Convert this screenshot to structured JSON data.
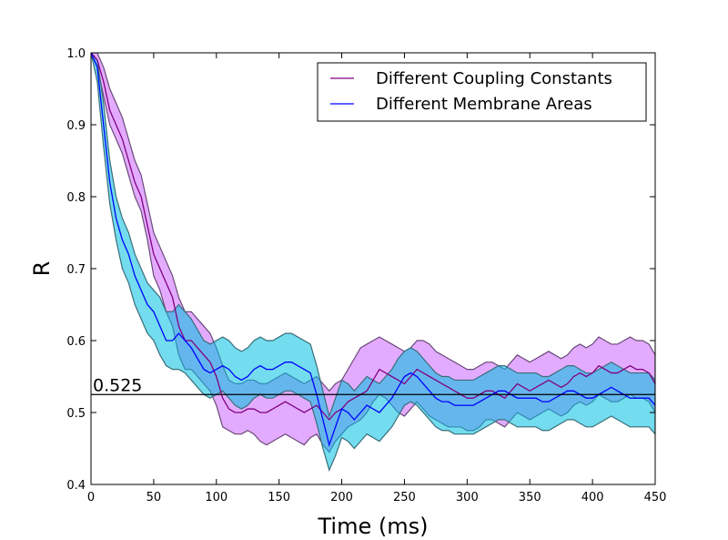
{
  "chart_data": {
    "type": "line",
    "title": "",
    "xlabel": "Time (ms)",
    "ylabel": "R",
    "xlim": [
      0,
      450
    ],
    "ylim": [
      0.4,
      1.0
    ],
    "xticks": [
      0,
      50,
      100,
      150,
      200,
      250,
      300,
      350,
      400,
      450
    ],
    "yticks": [
      0.4,
      0.5,
      0.6,
      0.7,
      0.8,
      0.9,
      1.0
    ],
    "xtick_labels": [
      "0",
      "50",
      "100",
      "150",
      "200",
      "250",
      "300",
      "350",
      "400",
      "450"
    ],
    "ytick_labels": [
      "0.4",
      "0.5",
      "0.6",
      "0.7",
      "0.8",
      "0.9",
      "1.0"
    ],
    "legend_position": "top-right",
    "hline": {
      "y": 0.525,
      "label": "0.525",
      "color": "#000000"
    },
    "series": [
      {
        "name": "Different Coupling Constants",
        "color": "#800080",
        "fill": "#cc66ff",
        "edge": "#6b4a7a",
        "x": [
          0,
          5,
          10,
          15,
          20,
          25,
          30,
          35,
          40,
          45,
          50,
          55,
          60,
          65,
          70,
          75,
          80,
          85,
          90,
          95,
          100,
          105,
          110,
          115,
          120,
          125,
          130,
          135,
          140,
          145,
          150,
          155,
          160,
          165,
          170,
          175,
          180,
          185,
          190,
          195,
          200,
          205,
          210,
          215,
          220,
          225,
          230,
          235,
          240,
          245,
          250,
          255,
          260,
          265,
          270,
          275,
          280,
          285,
          290,
          295,
          300,
          305,
          310,
          315,
          320,
          325,
          330,
          335,
          340,
          345,
          350,
          355,
          360,
          365,
          370,
          375,
          380,
          385,
          390,
          395,
          400,
          405,
          410,
          415,
          420,
          425,
          430,
          435,
          440,
          445,
          450
        ],
        "mean": [
          1.0,
          0.99,
          0.96,
          0.92,
          0.9,
          0.88,
          0.85,
          0.82,
          0.8,
          0.76,
          0.72,
          0.7,
          0.68,
          0.66,
          0.62,
          0.6,
          0.6,
          0.59,
          0.58,
          0.57,
          0.55,
          0.52,
          0.505,
          0.5,
          0.5,
          0.505,
          0.505,
          0.5,
          0.5,
          0.505,
          0.51,
          0.515,
          0.51,
          0.505,
          0.5,
          0.505,
          0.51,
          0.5,
          0.49,
          0.5,
          0.505,
          0.515,
          0.52,
          0.525,
          0.53,
          0.545,
          0.56,
          0.555,
          0.55,
          0.545,
          0.54,
          0.55,
          0.56,
          0.555,
          0.55,
          0.545,
          0.54,
          0.535,
          0.53,
          0.525,
          0.52,
          0.52,
          0.525,
          0.53,
          0.53,
          0.525,
          0.52,
          0.53,
          0.54,
          0.535,
          0.53,
          0.535,
          0.54,
          0.545,
          0.54,
          0.535,
          0.54,
          0.55,
          0.555,
          0.55,
          0.555,
          0.565,
          0.56,
          0.555,
          0.555,
          0.56,
          0.565,
          0.56,
          0.56,
          0.555,
          0.54
        ],
        "lower": [
          1.0,
          0.98,
          0.94,
          0.9,
          0.88,
          0.86,
          0.83,
          0.8,
          0.78,
          0.74,
          0.69,
          0.67,
          0.64,
          0.62,
          0.58,
          0.56,
          0.56,
          0.55,
          0.54,
          0.53,
          0.51,
          0.48,
          0.475,
          0.47,
          0.47,
          0.475,
          0.47,
          0.46,
          0.455,
          0.46,
          0.465,
          0.47,
          0.465,
          0.46,
          0.455,
          0.465,
          0.47,
          0.455,
          0.445,
          0.46,
          0.47,
          0.48,
          0.485,
          0.49,
          0.5,
          0.515,
          0.525,
          0.52,
          0.51,
          0.5,
          0.495,
          0.505,
          0.515,
          0.505,
          0.495,
          0.49,
          0.485,
          0.48,
          0.48,
          0.48,
          0.475,
          0.475,
          0.48,
          0.49,
          0.49,
          0.485,
          0.48,
          0.49,
          0.5,
          0.495,
          0.49,
          0.495,
          0.5,
          0.505,
          0.5,
          0.495,
          0.5,
          0.51,
          0.515,
          0.51,
          0.515,
          0.525,
          0.52,
          0.515,
          0.515,
          0.52,
          0.525,
          0.52,
          0.52,
          0.515,
          0.5
        ],
        "upper": [
          1.0,
          1.0,
          0.98,
          0.95,
          0.93,
          0.91,
          0.88,
          0.85,
          0.83,
          0.79,
          0.75,
          0.73,
          0.71,
          0.69,
          0.66,
          0.64,
          0.64,
          0.63,
          0.62,
          0.61,
          0.59,
          0.565,
          0.545,
          0.54,
          0.54,
          0.545,
          0.545,
          0.54,
          0.54,
          0.545,
          0.55,
          0.555,
          0.55,
          0.545,
          0.54,
          0.545,
          0.55,
          0.54,
          0.53,
          0.54,
          0.545,
          0.56,
          0.575,
          0.59,
          0.595,
          0.6,
          0.605,
          0.6,
          0.595,
          0.59,
          0.585,
          0.59,
          0.6,
          0.6,
          0.595,
          0.585,
          0.58,
          0.575,
          0.57,
          0.565,
          0.56,
          0.56,
          0.565,
          0.57,
          0.57,
          0.565,
          0.56,
          0.57,
          0.58,
          0.575,
          0.57,
          0.575,
          0.58,
          0.585,
          0.58,
          0.575,
          0.58,
          0.59,
          0.595,
          0.59,
          0.595,
          0.605,
          0.6,
          0.595,
          0.595,
          0.6,
          0.605,
          0.6,
          0.6,
          0.595,
          0.58
        ]
      },
      {
        "name": "Different Membrane Areas",
        "color": "#0000ff",
        "fill": "#00bfe0",
        "edge": "#3a6e7a",
        "x": [
          0,
          5,
          10,
          15,
          20,
          25,
          30,
          35,
          40,
          45,
          50,
          55,
          60,
          65,
          70,
          75,
          80,
          85,
          90,
          95,
          100,
          105,
          110,
          115,
          120,
          125,
          130,
          135,
          140,
          145,
          150,
          155,
          160,
          165,
          170,
          175,
          180,
          185,
          190,
          195,
          200,
          205,
          210,
          215,
          220,
          225,
          230,
          235,
          240,
          245,
          250,
          255,
          260,
          265,
          270,
          275,
          280,
          285,
          290,
          295,
          300,
          305,
          310,
          315,
          320,
          325,
          330,
          335,
          340,
          345,
          350,
          355,
          360,
          365,
          370,
          375,
          380,
          385,
          390,
          395,
          400,
          405,
          410,
          415,
          420,
          425,
          430,
          435,
          440,
          445,
          450
        ],
        "mean": [
          1.0,
          0.98,
          0.9,
          0.82,
          0.77,
          0.74,
          0.72,
          0.69,
          0.67,
          0.65,
          0.64,
          0.62,
          0.6,
          0.6,
          0.61,
          0.6,
          0.59,
          0.575,
          0.56,
          0.555,
          0.56,
          0.565,
          0.56,
          0.55,
          0.545,
          0.55,
          0.56,
          0.565,
          0.56,
          0.56,
          0.565,
          0.57,
          0.57,
          0.565,
          0.56,
          0.555,
          0.525,
          0.49,
          0.455,
          0.48,
          0.505,
          0.5,
          0.49,
          0.5,
          0.51,
          0.505,
          0.5,
          0.51,
          0.52,
          0.535,
          0.55,
          0.555,
          0.55,
          0.54,
          0.53,
          0.52,
          0.515,
          0.515,
          0.51,
          0.51,
          0.51,
          0.51,
          0.515,
          0.52,
          0.525,
          0.53,
          0.53,
          0.525,
          0.52,
          0.52,
          0.52,
          0.52,
          0.515,
          0.515,
          0.52,
          0.525,
          0.53,
          0.53,
          0.525,
          0.52,
          0.52,
          0.525,
          0.53,
          0.535,
          0.53,
          0.525,
          0.52,
          0.52,
          0.52,
          0.52,
          0.51
        ],
        "lower": [
          1.0,
          0.96,
          0.87,
          0.79,
          0.74,
          0.7,
          0.68,
          0.65,
          0.63,
          0.61,
          0.6,
          0.58,
          0.565,
          0.56,
          0.56,
          0.555,
          0.545,
          0.535,
          0.525,
          0.52,
          0.525,
          0.53,
          0.52,
          0.51,
          0.505,
          0.51,
          0.52,
          0.525,
          0.52,
          0.52,
          0.525,
          0.53,
          0.53,
          0.525,
          0.52,
          0.515,
          0.485,
          0.45,
          0.42,
          0.44,
          0.465,
          0.46,
          0.45,
          0.46,
          0.47,
          0.465,
          0.46,
          0.47,
          0.48,
          0.495,
          0.51,
          0.515,
          0.51,
          0.5,
          0.49,
          0.48,
          0.475,
          0.475,
          0.47,
          0.47,
          0.47,
          0.47,
          0.475,
          0.48,
          0.485,
          0.49,
          0.49,
          0.485,
          0.48,
          0.48,
          0.48,
          0.48,
          0.475,
          0.475,
          0.48,
          0.485,
          0.49,
          0.49,
          0.485,
          0.48,
          0.48,
          0.485,
          0.49,
          0.495,
          0.49,
          0.485,
          0.48,
          0.48,
          0.48,
          0.48,
          0.47
        ],
        "upper": [
          1.0,
          0.99,
          0.93,
          0.85,
          0.8,
          0.77,
          0.75,
          0.72,
          0.7,
          0.68,
          0.67,
          0.66,
          0.64,
          0.64,
          0.65,
          0.64,
          0.63,
          0.615,
          0.6,
          0.595,
          0.6,
          0.605,
          0.6,
          0.59,
          0.585,
          0.59,
          0.6,
          0.605,
          0.6,
          0.6,
          0.605,
          0.61,
          0.61,
          0.605,
          0.6,
          0.595,
          0.565,
          0.53,
          0.495,
          0.52,
          0.545,
          0.54,
          0.53,
          0.54,
          0.55,
          0.545,
          0.54,
          0.55,
          0.56,
          0.575,
          0.585,
          0.59,
          0.585,
          0.575,
          0.565,
          0.555,
          0.55,
          0.55,
          0.545,
          0.545,
          0.545,
          0.545,
          0.55,
          0.555,
          0.56,
          0.565,
          0.565,
          0.56,
          0.555,
          0.555,
          0.555,
          0.555,
          0.55,
          0.55,
          0.555,
          0.56,
          0.565,
          0.565,
          0.56,
          0.555,
          0.555,
          0.56,
          0.565,
          0.57,
          0.565,
          0.56,
          0.555,
          0.555,
          0.555,
          0.555,
          0.545
        ]
      }
    ]
  }
}
